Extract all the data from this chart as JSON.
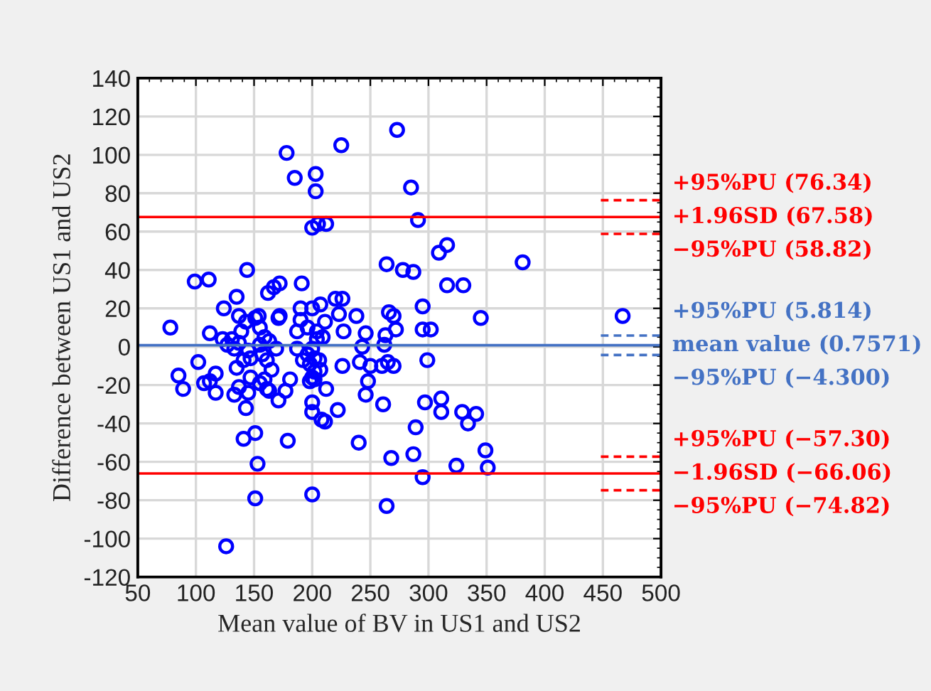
{
  "chart_data": {
    "type": "scatter",
    "xlabel": "Mean value of BV in US1 and US2",
    "ylabel": "Difference between US1 and US2",
    "xlim": [
      50,
      500
    ],
    "ylim": [
      -120,
      140
    ],
    "xticks": [
      50,
      100,
      150,
      200,
      250,
      300,
      350,
      400,
      450,
      500
    ],
    "yticks": [
      -120,
      -100,
      -80,
      -60,
      -40,
      -20,
      0,
      20,
      40,
      60,
      80,
      100,
      120,
      140
    ],
    "grid": true,
    "marker": "circle",
    "series": [
      {
        "color": "#0000ff",
        "x": [
          178,
          185,
          203,
          203,
          200,
          205,
          212,
          99,
          111,
          144,
          135,
          124,
          137,
          154,
          172,
          162,
          167,
          172,
          191,
          190,
          200,
          207,
          225,
          273,
          285,
          291,
          316,
          309,
          264,
          278,
          287,
          381,
          316,
          330,
          220,
          226,
          295,
          345,
          223,
          238,
          266,
          270,
          211,
          204,
          209,
          227,
          246,
          263,
          272,
          295,
          302,
          243,
          262,
          202,
          206,
          207,
          202,
          226,
          241,
          250,
          260,
          265,
          270,
          299,
          212,
          248,
          246,
          261,
          297,
          311,
          311,
          329,
          334,
          341,
          289,
          222,
          211,
          200,
          240,
          268,
          287,
          349,
          351,
          324,
          295,
          264,
          200,
          78,
          85,
          89,
          102,
          112,
          107,
          112,
          117,
          117,
          123,
          127,
          131,
          133,
          137,
          139,
          143,
          145,
          147,
          141,
          135,
          151,
          155,
          159,
          155,
          163,
          157,
          161,
          169,
          171,
          165,
          159,
          161,
          155,
          163,
          147,
          137,
          133,
          145,
          143,
          171,
          177,
          181,
          187,
          190,
          192,
          196,
          198,
          200,
          200,
          202,
          198,
          200,
          208,
          179,
          151,
          141,
          153,
          151,
          126,
          196,
          204,
          187,
          467
        ],
        "values": [
          101,
          88,
          90,
          81,
          62,
          64,
          64,
          34,
          35,
          40,
          26,
          20,
          16,
          16,
          16,
          28,
          31,
          33,
          33,
          20,
          20,
          22,
          105,
          113,
          83,
          66,
          53,
          49,
          43,
          40,
          39,
          44,
          32,
          32,
          25,
          25,
          21,
          15,
          17,
          16,
          18,
          16,
          13,
          8,
          5,
          8,
          7,
          6,
          9,
          9,
          9,
          0,
          1,
          -6,
          -7,
          -12,
          -17,
          -10,
          -8,
          -10,
          -10,
          -8,
          -10,
          -7,
          -22,
          -18,
          -25,
          -30,
          -29,
          -27,
          -34,
          -34,
          -40,
          -35,
          -42,
          -33,
          -39,
          -34,
          -50,
          -58,
          -56,
          -54,
          -63,
          -62,
          -68,
          -83,
          -77,
          10,
          -15,
          -22,
          -8,
          7,
          -19,
          -18,
          -24,
          -14,
          4,
          1,
          4,
          -1,
          2,
          8,
          13,
          -2,
          -6,
          -7,
          -11,
          15,
          10,
          5,
          1,
          3,
          -4,
          -7,
          -1,
          15,
          -12,
          -17,
          -22,
          -19,
          -23,
          -16,
          -21,
          -25,
          -24,
          -32,
          -28,
          -23,
          -17,
          -1,
          14,
          -7,
          -4,
          -9,
          -1,
          -16,
          -13,
          -18,
          -29,
          -38,
          -49,
          -45,
          -48,
          -61,
          -79,
          -104,
          10,
          4,
          8,
          16
        ]
      }
    ],
    "ref_lines": [
      {
        "axis": "y",
        "value": 76.34,
        "label": "+95%PU (76.34)",
        "color": "#ff0000",
        "line_style": "dashed"
      },
      {
        "axis": "y",
        "value": 67.58,
        "label": "+1.96SD (67.58)",
        "color": "#ff0000",
        "line_style": "solid"
      },
      {
        "axis": "y",
        "value": 58.82,
        "label": "−95%PU (58.82)",
        "color": "#ff0000",
        "line_style": "dashed"
      },
      {
        "axis": "y",
        "value": 5.814,
        "label": "+95%PU (5.814)",
        "color": "#4472c4",
        "line_style": "dashed"
      },
      {
        "axis": "y",
        "value": 0.7571,
        "label": "mean value (0.7571)",
        "color": "#4472c4",
        "line_style": "solid"
      },
      {
        "axis": "y",
        "value": -4.3,
        "label": "−95%PU (−4.300)",
        "color": "#4472c4",
        "line_style": "dashed"
      },
      {
        "axis": "y",
        "value": -57.3,
        "label": "+95%PU (−57.30)",
        "color": "#ff0000",
        "line_style": "dashed"
      },
      {
        "axis": "y",
        "value": -66.06,
        "label": "−1.96SD (−66.06)",
        "color": "#ff0000",
        "line_style": "solid"
      },
      {
        "axis": "y",
        "value": -74.82,
        "label": "−95%PU (−74.82)",
        "color": "#ff0000",
        "line_style": "dashed"
      }
    ]
  }
}
